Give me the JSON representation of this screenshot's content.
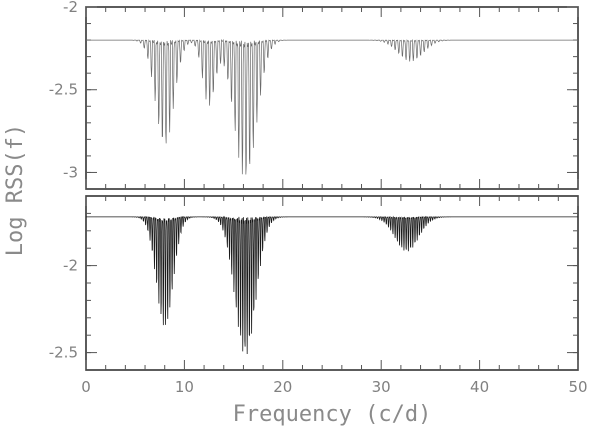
{
  "chart_data": [
    {
      "type": "line",
      "panel": "top",
      "xlim": [
        0,
        50
      ],
      "ylim": [
        -3.1,
        -2.0
      ],
      "ylabel": "Log RSS(f)",
      "yticks": [
        -2,
        -2.5,
        -3
      ],
      "yticklabels": [
        "-2",
        "-2.5",
        "-3"
      ],
      "baseline": -2.2,
      "dips": [
        {
          "center": 8.0,
          "min": -2.85,
          "width": 1.3
        },
        {
          "center": 16.2,
          "min": -3.05,
          "width": 1.6
        },
        {
          "center": 12.5,
          "min": -2.6,
          "width": 0.9
        },
        {
          "center": 33.0,
          "min": -2.33,
          "width": 1.8
        }
      ],
      "grid": false
    },
    {
      "type": "line",
      "panel": "bottom",
      "xlim": [
        0,
        50
      ],
      "ylim": [
        -2.6,
        -1.6
      ],
      "xlabel": "Frequency (c/d)",
      "xticks": [
        0,
        10,
        20,
        30,
        40,
        50
      ],
      "xticklabels": [
        "0",
        "10",
        "20",
        "30",
        "40",
        "50"
      ],
      "yticks": [
        -2,
        -2.5
      ],
      "yticklabels": [
        "-2",
        "-2.5"
      ],
      "baseline": -1.72,
      "dips": [
        {
          "center": 8.0,
          "min": -2.36,
          "width": 1.2
        },
        {
          "center": 16.2,
          "min": -2.52,
          "width": 1.5
        },
        {
          "center": 32.6,
          "min": -1.92,
          "width": 1.7
        }
      ],
      "grid": false
    }
  ]
}
